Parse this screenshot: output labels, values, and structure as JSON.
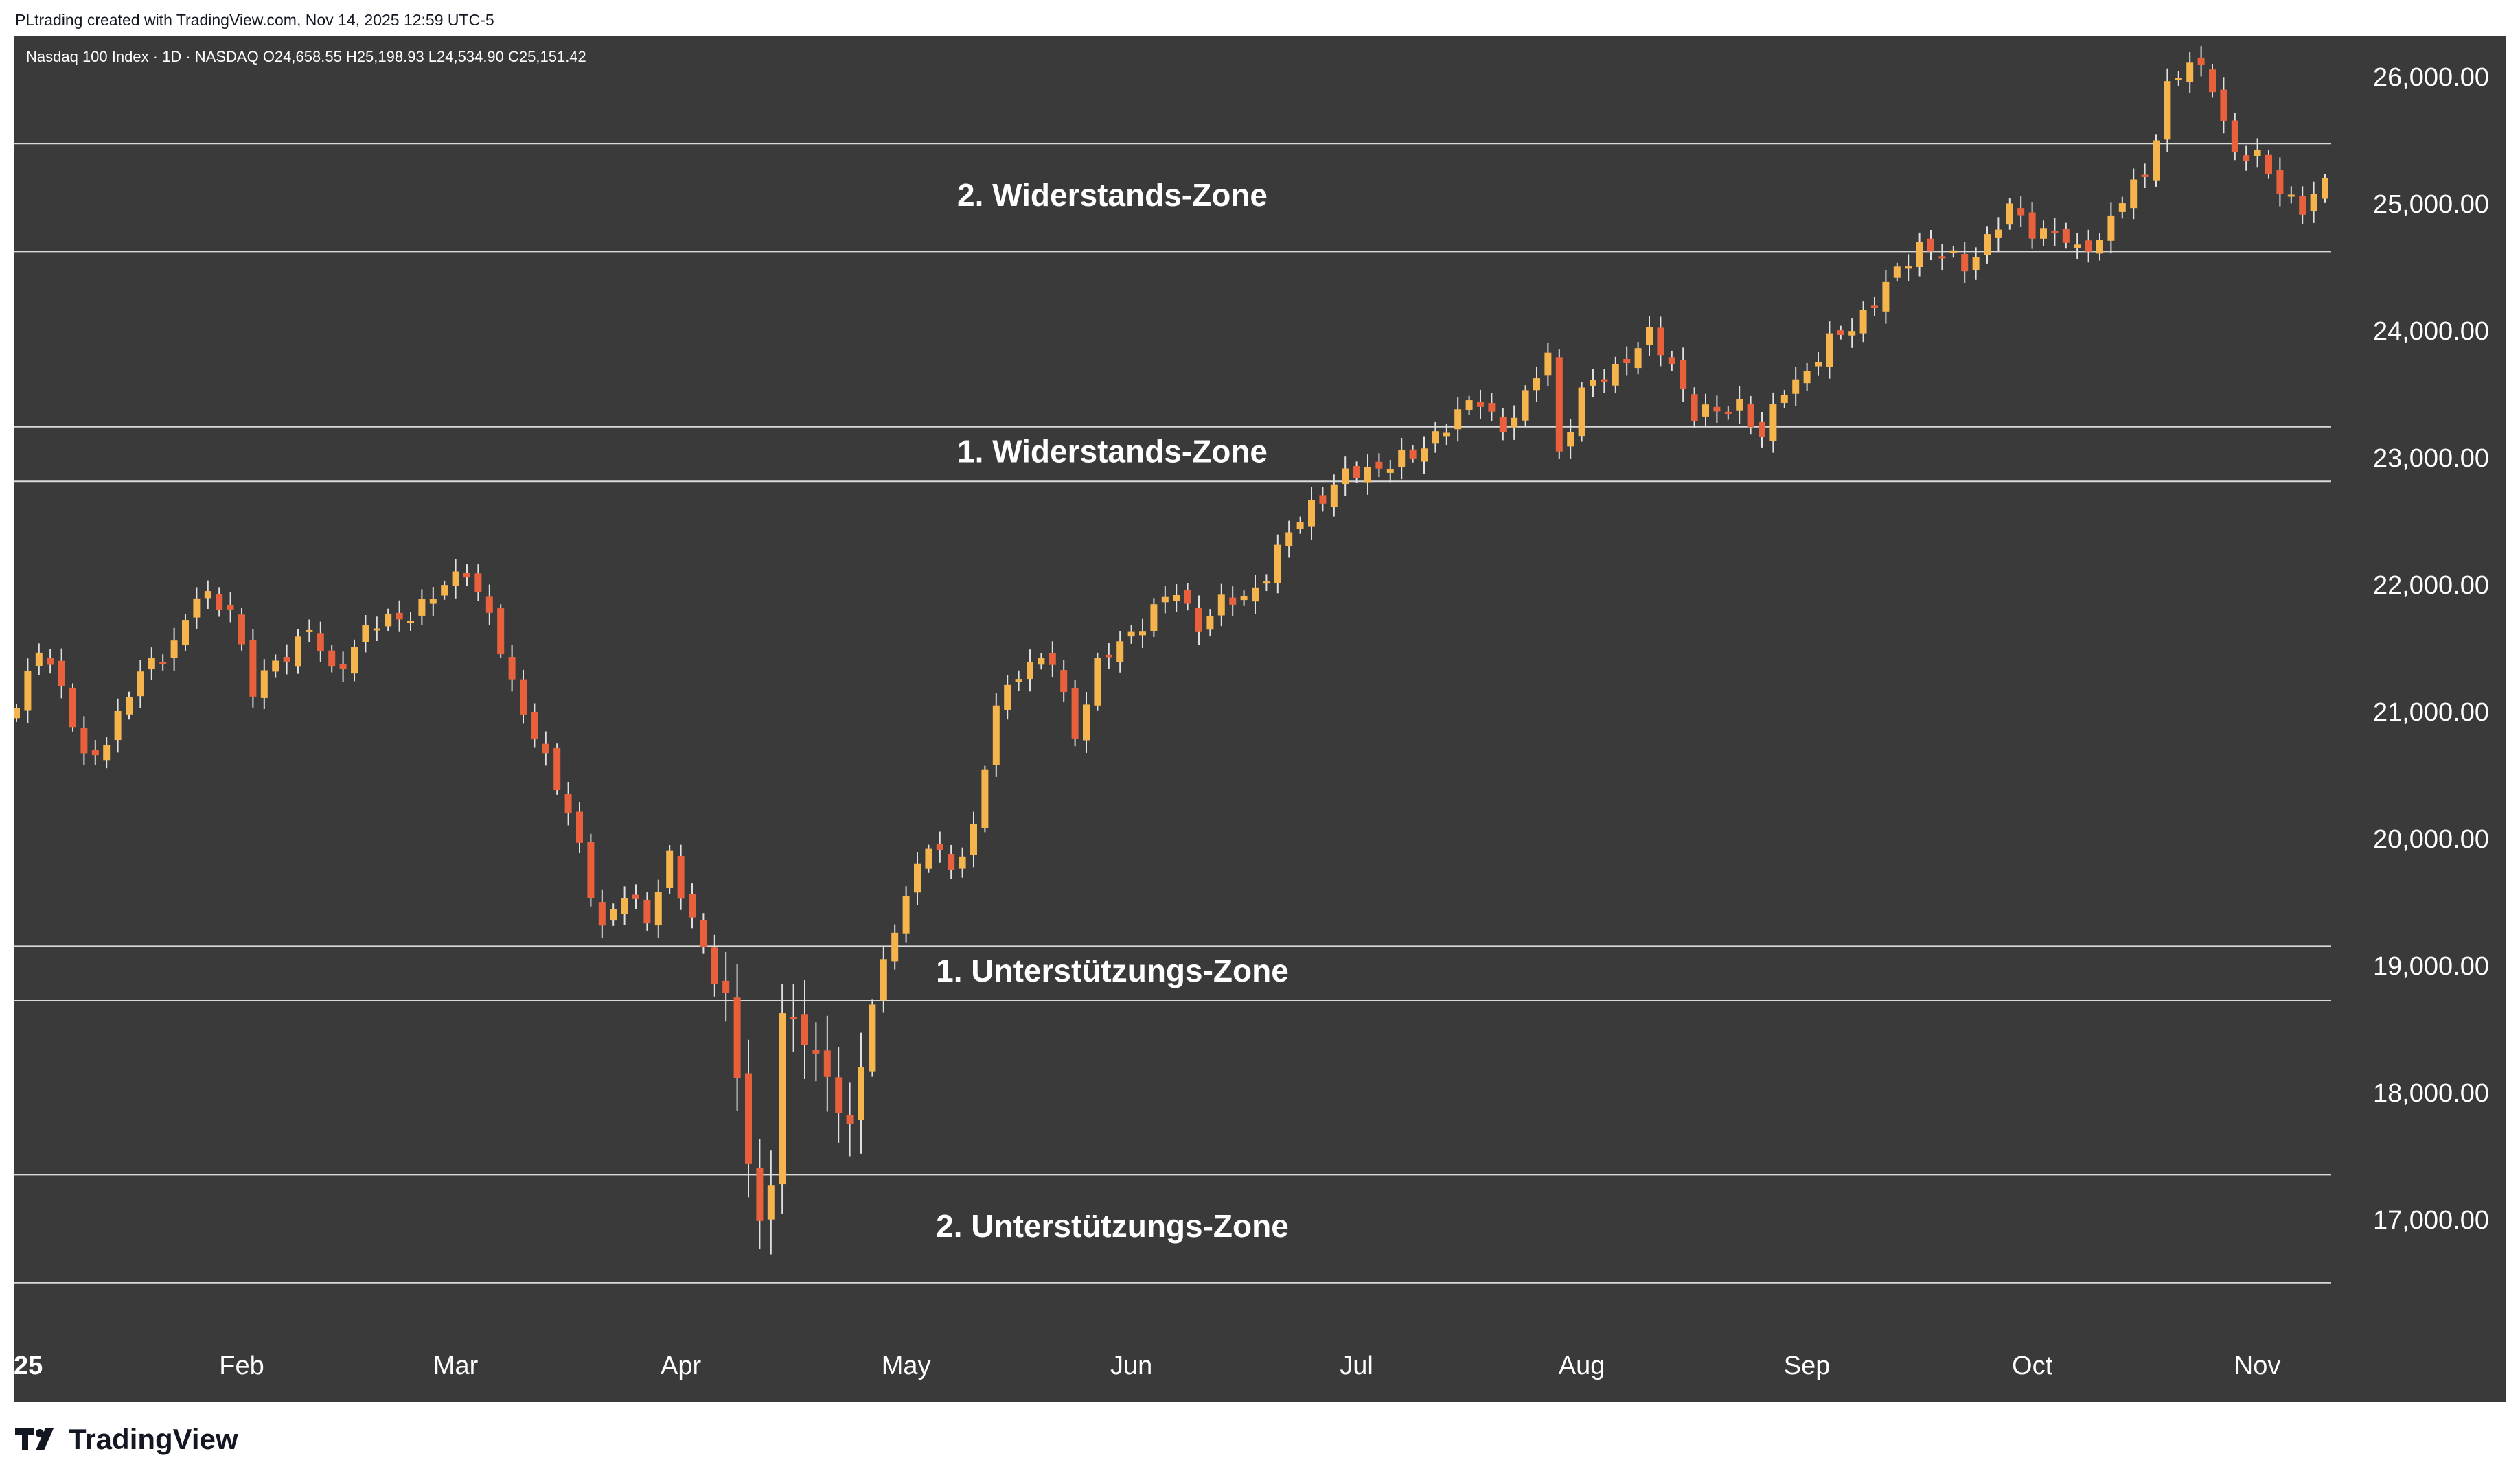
{
  "header": {
    "credit": "PLtrading created with TradingView.com, Nov 14, 2025 12:59 UTC-5"
  },
  "brand": {
    "name": "TradingView",
    "logo_icon": "tradingview-logo-icon"
  },
  "colors": {
    "background": "#3a3a3a",
    "bull_body": "#f5b44c",
    "bear_body": "#e8613c",
    "wick": "#e0e0e0",
    "zone_line": "#d9d9d9",
    "text": "#ffffff"
  },
  "chart_data": {
    "type": "candlestick",
    "symbol_line": "Nasdaq 100 Index · 1D · NASDAQ  O24,658.55  H25,198.93  L24,534.90  C25,151.42",
    "ylim": [
      16450,
      26550
    ],
    "y_ticks": [
      "26,000.00",
      "25,000.00",
      "24,000.00",
      "23,000.00",
      "22,000.00",
      "21,000.00",
      "20,000.00",
      "19,000.00",
      "18,000.00",
      "17,000.00"
    ],
    "y_tick_values": [
      26000,
      25000,
      24000,
      23000,
      22000,
      21000,
      20000,
      19000,
      18000,
      17000
    ],
    "x_ticks": [
      {
        "label": "25",
        "index": 0
      },
      {
        "label": "Feb",
        "index": 20
      },
      {
        "label": "Mar",
        "index": 39
      },
      {
        "label": "Apr",
        "index": 59
      },
      {
        "label": "May",
        "index": 79
      },
      {
        "label": "Jun",
        "index": 99
      },
      {
        "label": "Jul",
        "index": 119
      },
      {
        "label": "Aug",
        "index": 139
      },
      {
        "label": "Sep",
        "index": 159
      },
      {
        "label": "Oct",
        "index": 179
      },
      {
        "label": "Nov",
        "index": 199
      }
    ],
    "zones": [
      {
        "label": "2. Widerstands-Zone",
        "low": 24630,
        "high": 25480
      },
      {
        "label": "1. Widerstands-Zone",
        "low": 22820,
        "high": 23250
      },
      {
        "label": "1. Unterstützungs-Zone",
        "low": 18730,
        "high": 19160
      },
      {
        "label": "2. Unterstützungs-Zone",
        "low": 16510,
        "high": 17360
      }
    ],
    "anchors": [
      [
        0,
        21000
      ],
      [
        2,
        21550
      ],
      [
        4,
        21200
      ],
      [
        6,
        20600
      ],
      [
        8,
        20800
      ],
      [
        10,
        21150
      ],
      [
        12,
        21400
      ],
      [
        14,
        21550
      ],
      [
        16,
        21900
      ],
      [
        19,
        21850
      ],
      [
        21,
        21150
      ],
      [
        23,
        21400
      ],
      [
        26,
        21650
      ],
      [
        28,
        21300
      ],
      [
        31,
        21650
      ],
      [
        34,
        21750
      ],
      [
        37,
        21900
      ],
      [
        40,
        22150
      ],
      [
        42,
        21750
      ],
      [
        44,
        21200
      ],
      [
        46,
        20850
      ],
      [
        48,
        20400
      ],
      [
        50,
        19950
      ],
      [
        52,
        19300
      ],
      [
        54,
        19550
      ],
      [
        56,
        19400
      ],
      [
        58,
        19850
      ],
      [
        59,
        19550
      ],
      [
        61,
        19150
      ],
      [
        63,
        18750
      ],
      [
        65,
        17450
      ],
      [
        66,
        16950
      ],
      [
        67,
        17350
      ],
      [
        68,
        18650
      ],
      [
        70,
        18400
      ],
      [
        72,
        18150
      ],
      [
        74,
        17700
      ],
      [
        76,
        18700
      ],
      [
        78,
        19350
      ],
      [
        79,
        19550
      ],
      [
        81,
        19950
      ],
      [
        83,
        19800
      ],
      [
        85,
        20050
      ],
      [
        87,
        21050
      ],
      [
        89,
        21350
      ],
      [
        92,
        21400
      ],
      [
        94,
        20850
      ],
      [
        96,
        21350
      ],
      [
        98,
        21550
      ],
      [
        101,
        21800
      ],
      [
        103,
        21950
      ],
      [
        105,
        21700
      ],
      [
        107,
        21850
      ],
      [
        109,
        21900
      ],
      [
        111,
        22100
      ],
      [
        113,
        22400
      ],
      [
        115,
        22650
      ],
      [
        118,
        22850
      ],
      [
        121,
        22950
      ],
      [
        124,
        23000
      ],
      [
        126,
        23200
      ],
      [
        128,
        23350
      ],
      [
        130,
        23450
      ],
      [
        132,
        23250
      ],
      [
        134,
        23450
      ],
      [
        136,
        23850
      ],
      [
        137,
        23050
      ],
      [
        139,
        23500
      ],
      [
        141,
        23650
      ],
      [
        143,
        23800
      ],
      [
        145,
        23950
      ],
      [
        147,
        23750
      ],
      [
        149,
        23350
      ],
      [
        151,
        23350
      ],
      [
        153,
        23450
      ],
      [
        155,
        23150
      ],
      [
        157,
        23550
      ],
      [
        159,
        23700
      ],
      [
        161,
        23900
      ],
      [
        163,
        24050
      ],
      [
        165,
        24250
      ],
      [
        167,
        24450
      ],
      [
        169,
        24700
      ],
      [
        171,
        24600
      ],
      [
        173,
        24500
      ],
      [
        175,
        24750
      ],
      [
        177,
        24950
      ],
      [
        179,
        24800
      ],
      [
        181,
        24800
      ],
      [
        183,
        24600
      ],
      [
        185,
        24750
      ],
      [
        187,
        25050
      ],
      [
        189,
        25200
      ],
      [
        191,
        25950
      ],
      [
        193,
        26100
      ],
      [
        195,
        25950
      ],
      [
        197,
        25400
      ],
      [
        199,
        25350
      ],
      [
        201,
        25150
      ],
      [
        203,
        24950
      ],
      [
        205,
        25150
      ]
    ],
    "n_candles": 206
  }
}
